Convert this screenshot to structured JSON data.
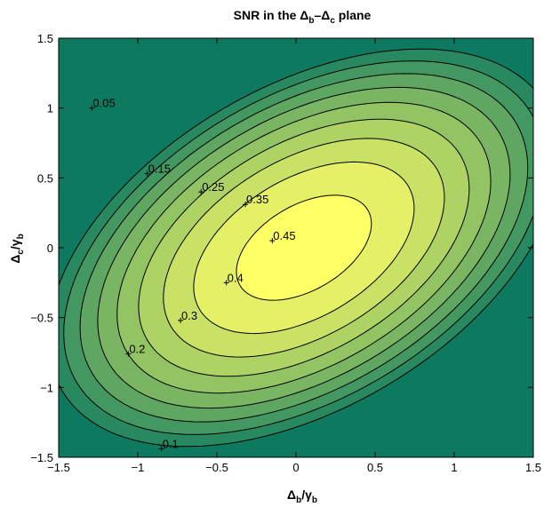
{
  "chart_data": {
    "type": "contour",
    "title": {
      "pre": "SNR in the ",
      "d1": "Δ",
      "s1": "b",
      "dash": "–",
      "d2": "Δ",
      "s2": "c",
      "post": " plane"
    },
    "xlabel": {
      "num": "Δ",
      "num_sub": "b",
      "slash": "/",
      "den": "γ",
      "den_sub": "b"
    },
    "ylabel": {
      "num": "Δ",
      "num_sub": "c",
      "slash": "/",
      "den": "γ",
      "den_sub": "b"
    },
    "xlim": [
      -1.5,
      1.5
    ],
    "ylim": [
      -1.5,
      1.5
    ],
    "x_ticks": [
      -1.5,
      -1,
      -0.5,
      0,
      0.5,
      1,
      1.5
    ],
    "x_tick_labels": [
      "−1.5",
      "−1",
      "−0.5",
      "0",
      "0.5",
      "1",
      "1.5"
    ],
    "y_ticks": [
      1.5,
      1,
      0.5,
      0,
      -0.5,
      -1,
      -1.5
    ],
    "y_tick_labels": [
      "1.5",
      "1",
      "0.5",
      "0",
      "−0.5",
      "−1",
      "−1.5"
    ],
    "levels": [
      0.05,
      0.1,
      0.15,
      0.2,
      0.25,
      0.3,
      0.35,
      0.4,
      0.45
    ],
    "level_labels": [
      {
        "text": "0.05",
        "x": -1.29,
        "y": 1.0
      },
      {
        "text": "0.15",
        "x": -0.94,
        "y": 0.53
      },
      {
        "text": "0.25",
        "x": -0.6,
        "y": 0.4
      },
      {
        "text": "0.35",
        "x": -0.32,
        "y": 0.31
      },
      {
        "text": "0.45",
        "x": -0.15,
        "y": 0.05
      },
      {
        "text": "0.4",
        "x": -0.44,
        "y": -0.25
      },
      {
        "text": "0.3",
        "x": -0.73,
        "y": -0.52
      },
      {
        "text": "0.2",
        "x": -1.06,
        "y": -0.76
      },
      {
        "text": "0.1",
        "x": -0.85,
        "y": -1.44
      }
    ],
    "colors": {
      "low": "#0d7a60",
      "high": "#ffff66",
      "line": "#000000"
    },
    "grid": false
  }
}
